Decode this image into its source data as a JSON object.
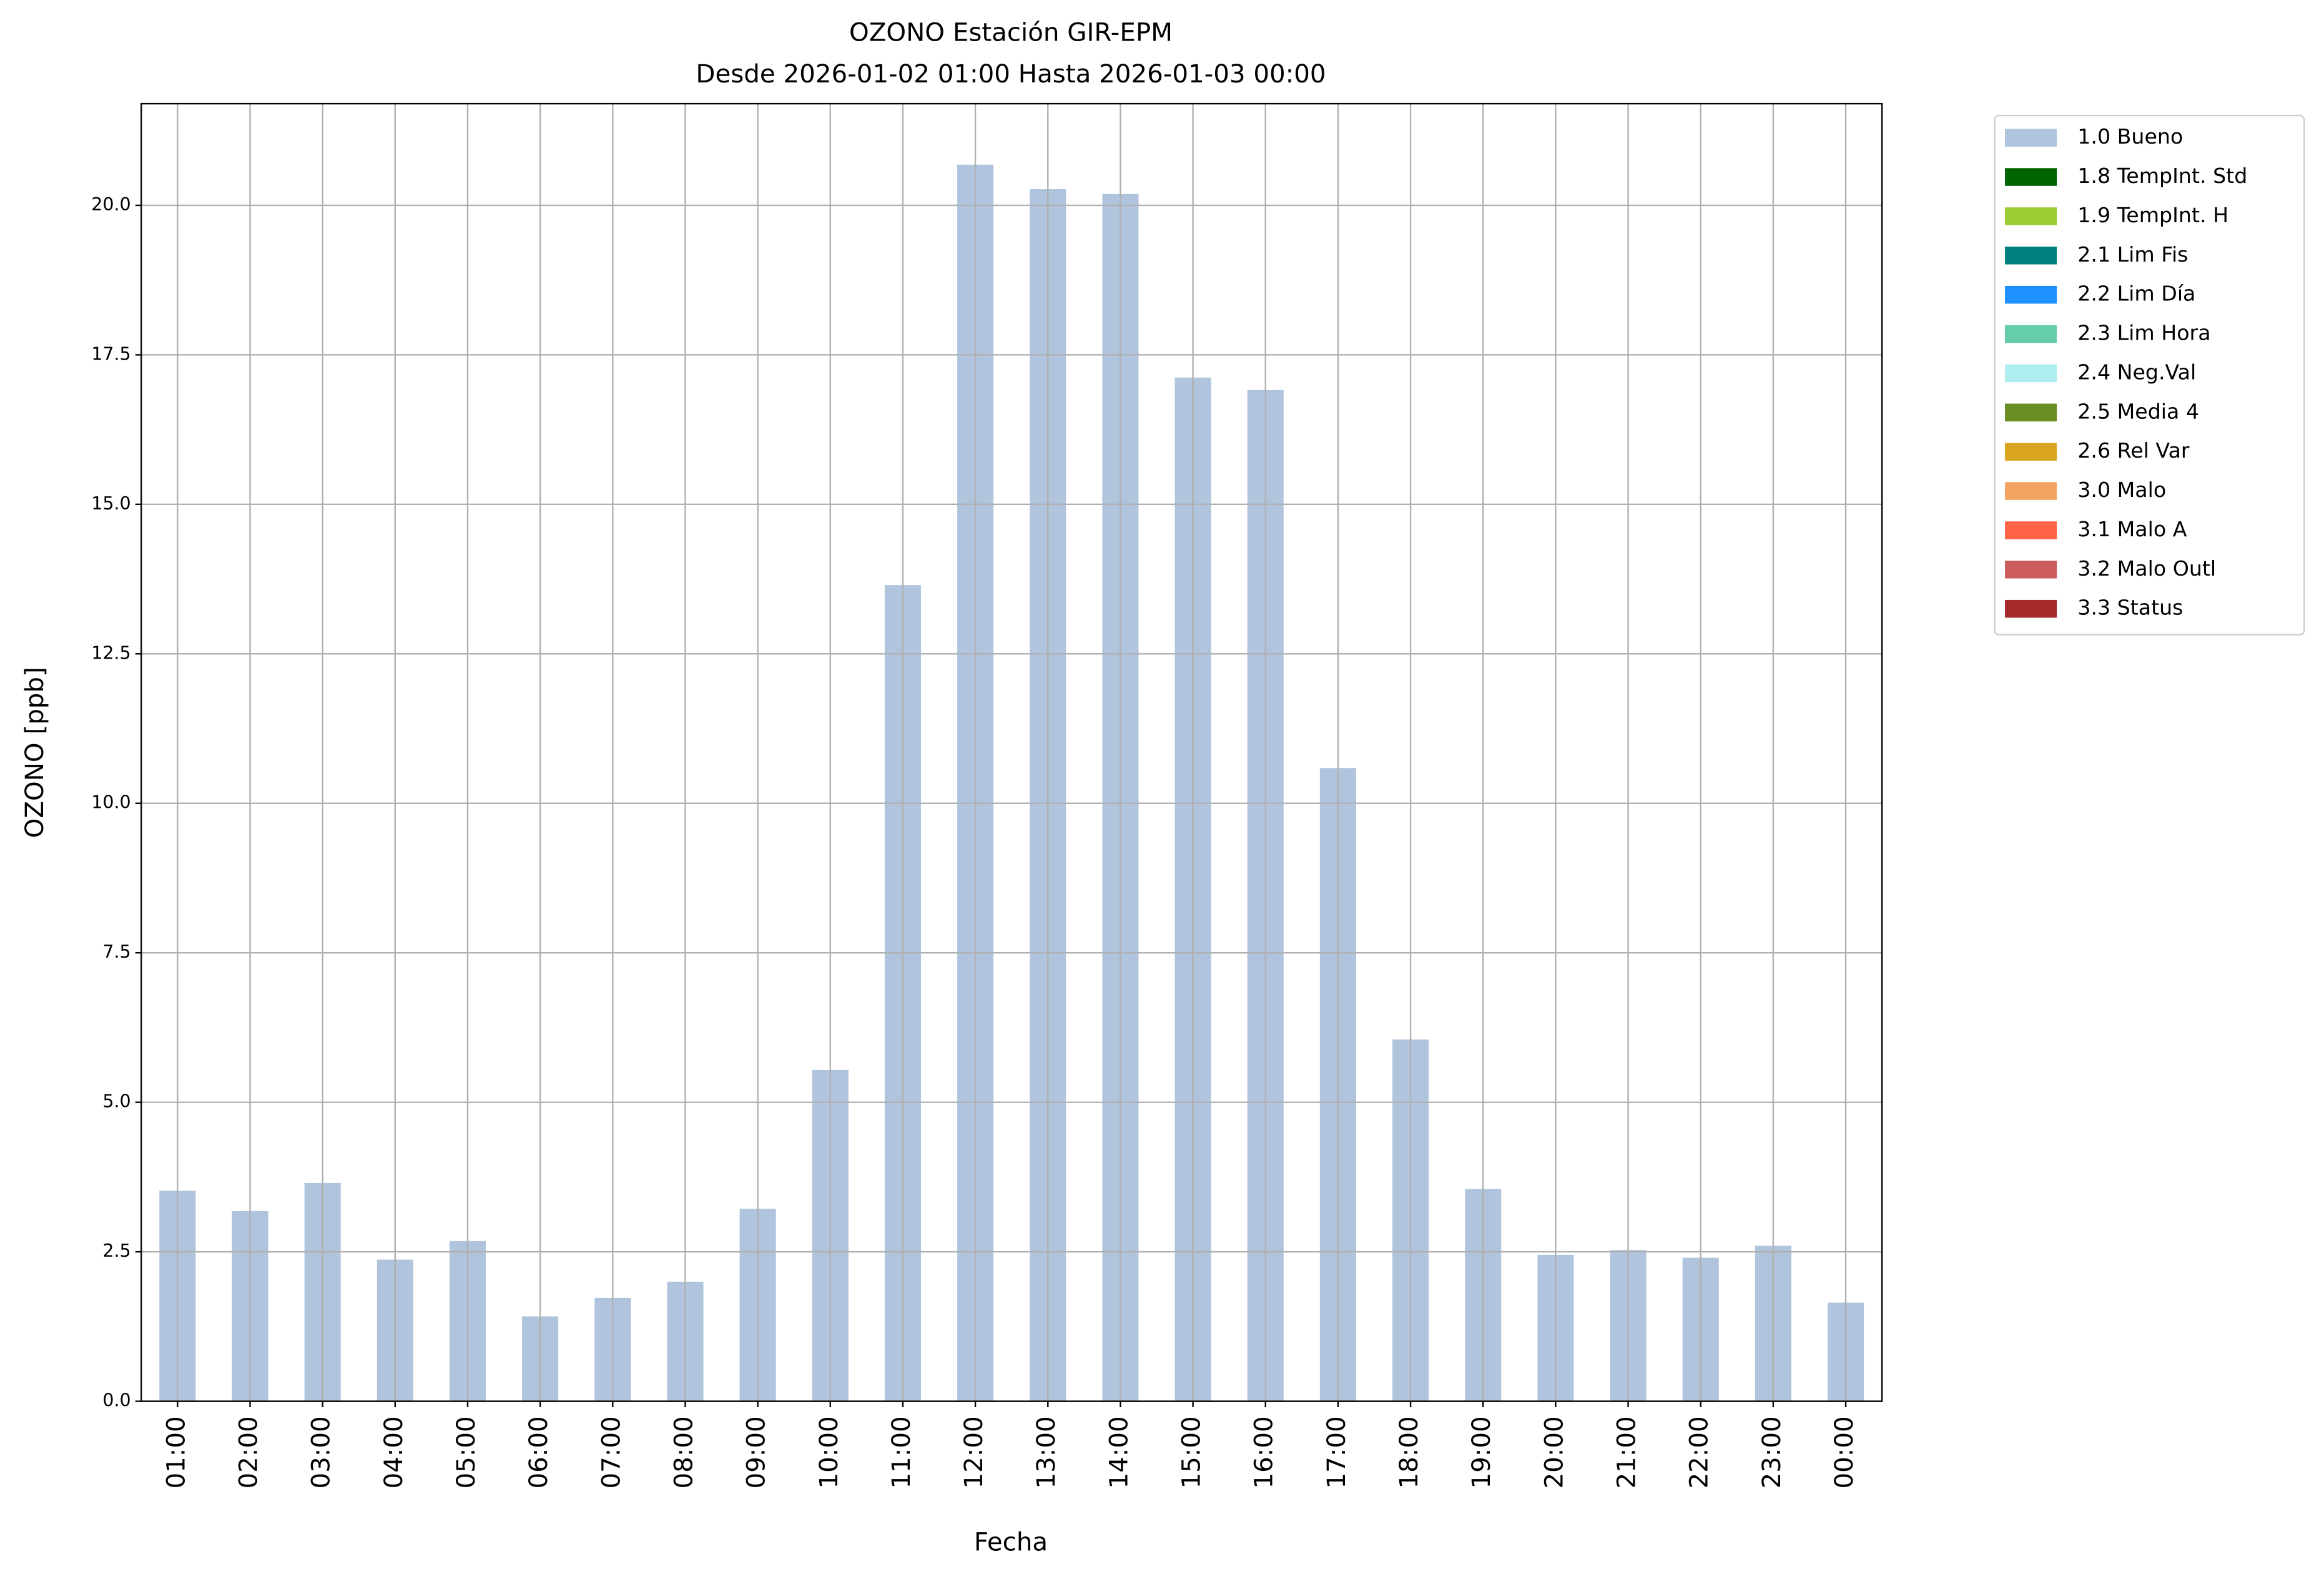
{
  "chart_data": {
    "type": "bar",
    "title": "OZONO Estación GIR-EPM",
    "subtitle": "Desde 2026-01-02 01:00 Hasta 2026-01-03 00:00",
    "x_label": "Fecha",
    "y_label": "OZONO [ppb]",
    "categories": [
      "01:00",
      "02:00",
      "03:00",
      "04:00",
      "05:00",
      "06:00",
      "07:00",
      "08:00",
      "09:00",
      "10:00",
      "11:00",
      "12:00",
      "13:00",
      "14:00",
      "15:00",
      "16:00",
      "17:00",
      "18:00",
      "19:00",
      "20:00",
      "21:00",
      "22:00",
      "23:00",
      "00:00"
    ],
    "series": [
      {
        "name": "1.0 Bueno",
        "color": "#b0c4de",
        "values": [
          3.52,
          3.18,
          3.65,
          2.37,
          2.68,
          1.42,
          1.73,
          2.0,
          3.22,
          5.54,
          13.65,
          20.68,
          20.27,
          20.19,
          17.12,
          16.91,
          10.59,
          6.05,
          3.55,
          2.45,
          2.53,
          2.4,
          2.6,
          1.65
        ]
      }
    ],
    "legend": [
      {
        "name": "1.0 Bueno",
        "color": "#b0c4de"
      },
      {
        "name": "1.8 TempInt. Std",
        "color": "#006400"
      },
      {
        "name": "1.9 TempInt. H",
        "color": "#9acd32"
      },
      {
        "name": "2.1 Lim Fis",
        "color": "#008080"
      },
      {
        "name": "2.2 Lim Día",
        "color": "#1e90ff"
      },
      {
        "name": "2.3 Lim Hora",
        "color": "#66cdaa"
      },
      {
        "name": "2.4 Neg.Val",
        "color": "#afeeee"
      },
      {
        "name": "2.5 Media 4",
        "color": "#6b8e23"
      },
      {
        "name": "2.6 Rel Var",
        "color": "#daa520"
      },
      {
        "name": "3.0 Malo",
        "color": "#f4a460"
      },
      {
        "name": "3.1 Malo A",
        "color": "#ff6347"
      },
      {
        "name": "3.2 Malo Outl",
        "color": "#cd5c5c"
      },
      {
        "name": "3.3 Status",
        "color": "#a52a2a"
      }
    ],
    "legend_position": "outside upper right",
    "ylim": [
      0,
      21.7
    ],
    "yticks": [
      {
        "value": 0,
        "label": "0.0"
      },
      2.5,
      {
        "value": 5,
        "label": "5.0"
      },
      7.5,
      {
        "value": 10,
        "label": "10.0"
      },
      12.5,
      {
        "value": 15,
        "label": "15.0"
      },
      17.5,
      {
        "value": 20,
        "label": "20.0"
      }
    ],
    "grid": true
  }
}
